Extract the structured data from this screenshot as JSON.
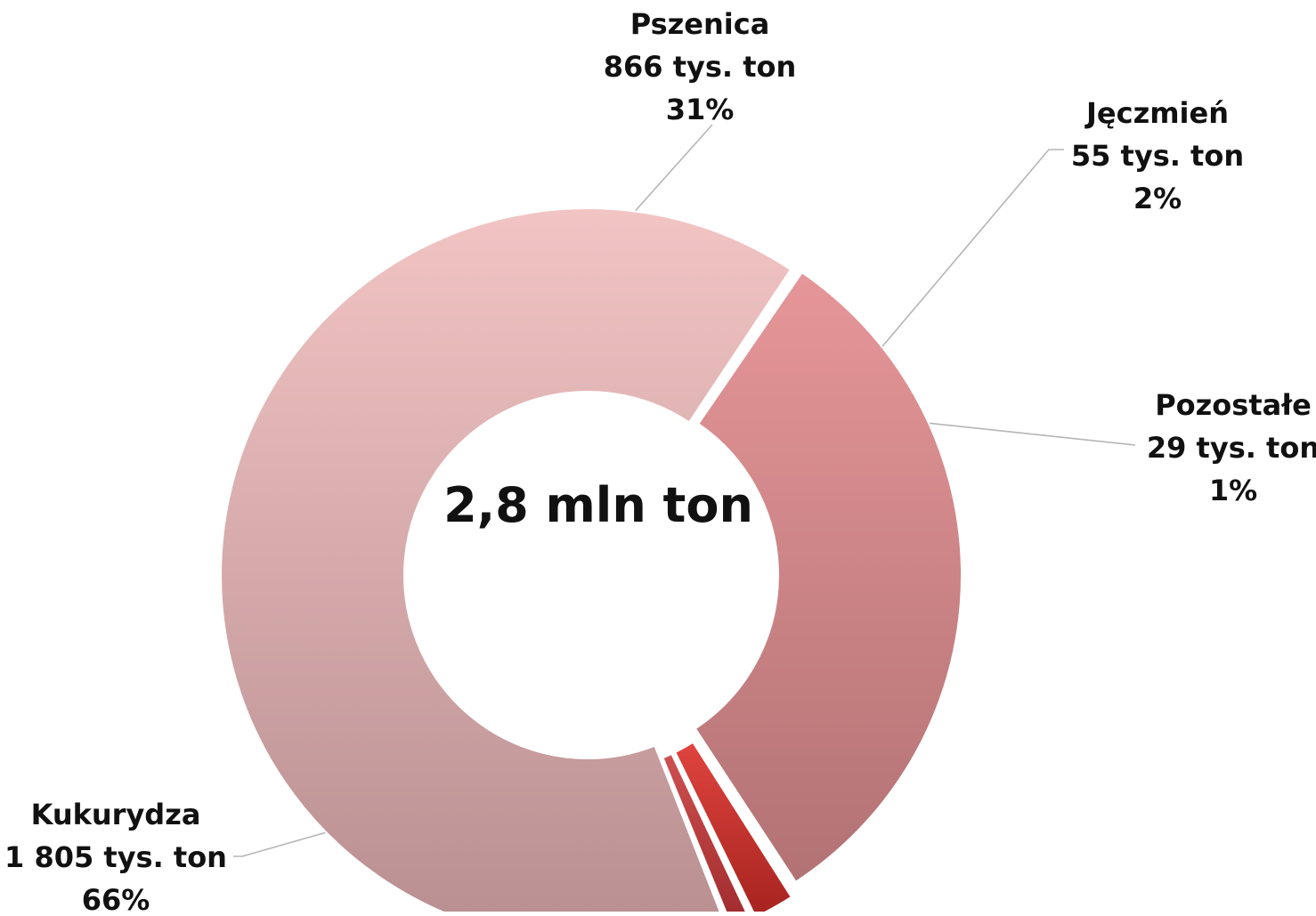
{
  "chart_data": {
    "type": "pie",
    "variant": "donut",
    "center_label": "2,8 mln ton",
    "slices": [
      {
        "name": "Pszenica",
        "value": 866,
        "value_text": "866 tys. ton",
        "percent_text": "31%",
        "color": "#d98a8c"
      },
      {
        "name": "Jęczmień",
        "value": 55,
        "value_text": "55 tys. ton",
        "percent_text": "2%",
        "color": "#c9332f"
      },
      {
        "name": "Pozostałe",
        "value": 29,
        "value_text": "29 tys. ton",
        "percent_text": "1%",
        "color": "#b8383a"
      },
      {
        "name": "Kukurydza",
        "value": 1805,
        "value_text": "1 805 tys. ton",
        "percent_text": "66%",
        "color": "#dfaaaa"
      }
    ]
  }
}
